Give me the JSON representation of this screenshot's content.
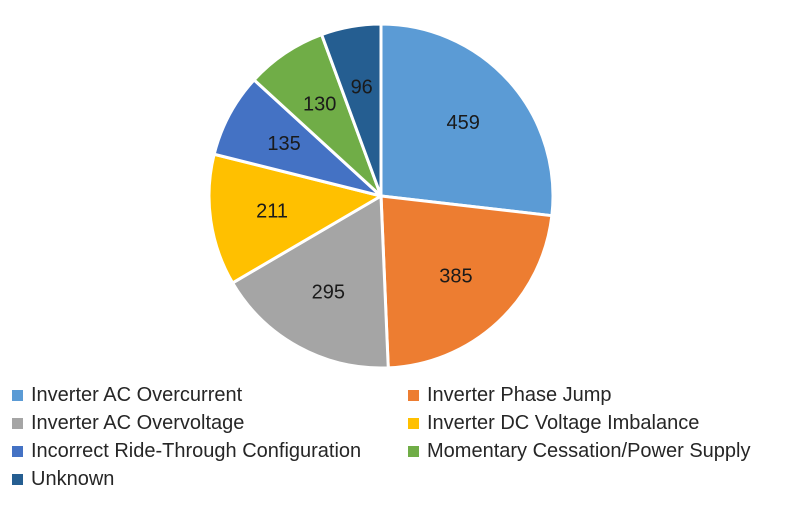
{
  "chart_data": {
    "type": "pie",
    "title": "",
    "legend_position": "bottom",
    "slices": [
      {
        "label": "Inverter AC Overcurrent",
        "value": 459,
        "color": "#5B9BD5"
      },
      {
        "label": "Inverter Phase Jump",
        "value": 385,
        "color": "#ED7D31"
      },
      {
        "label": "Inverter AC Overvoltage",
        "value": 295,
        "color": "#A5A5A5"
      },
      {
        "label": "Inverter DC Voltage Imbalance",
        "value": 211,
        "color": "#FFC000"
      },
      {
        "label": "Incorrect Ride-Through Configuration",
        "value": 135,
        "color": "#4472C4"
      },
      {
        "label": "Momentary Cessation/Power Supply",
        "value": 130,
        "color": "#70AD47"
      },
      {
        "label": "Unknown",
        "value": 96,
        "color": "#255E91"
      }
    ]
  }
}
